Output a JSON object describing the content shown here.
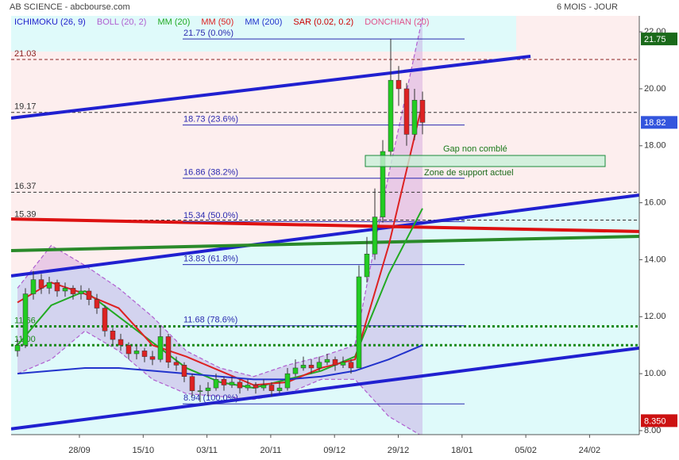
{
  "chart_data": {
    "type": "candlestick",
    "title": "AB SCIENCE - abcbourse.com",
    "period": "6 MOIS - JOUR",
    "ylim": [
      7.86,
      22.56
    ],
    "yticks": [
      {
        "value": 8,
        "label": "8.00"
      },
      {
        "value": 10,
        "label": "10.00"
      },
      {
        "value": 12,
        "label": "12.00"
      },
      {
        "value": 14,
        "label": "14.00"
      },
      {
        "value": 16,
        "label": "16.00"
      },
      {
        "value": 18,
        "label": "18.00"
      },
      {
        "value": 20,
        "label": "20.00"
      },
      {
        "value": 22,
        "label": "22.00"
      }
    ],
    "xtick_labels": [
      "28/09",
      "15/10",
      "03/11",
      "20/11",
      "09/12",
      "29/12",
      "18/01",
      "05/02",
      "24/02"
    ],
    "up_color": "#22cc22",
    "down_color": "#dd2222",
    "candles": [
      [
        10.8,
        11.2,
        10.6,
        11.0
      ],
      [
        11.0,
        13.0,
        10.9,
        12.8
      ],
      [
        12.8,
        13.6,
        12.6,
        13.3
      ],
      [
        13.3,
        13.5,
        12.8,
        13.0
      ],
      [
        13.0,
        13.4,
        12.8,
        13.2
      ],
      [
        13.2,
        13.3,
        12.7,
        12.9
      ],
      [
        12.9,
        13.2,
        12.7,
        13.0
      ],
      [
        13.0,
        13.1,
        12.6,
        12.8
      ],
      [
        12.8,
        13.1,
        12.6,
        12.9
      ],
      [
        12.9,
        13.0,
        12.4,
        12.6
      ],
      [
        12.6,
        12.8,
        12.1,
        12.3
      ],
      [
        12.3,
        12.4,
        11.3,
        11.5
      ],
      [
        11.5,
        11.6,
        11.0,
        11.2
      ],
      [
        11.2,
        11.4,
        10.8,
        11.0
      ],
      [
        11.0,
        11.1,
        10.5,
        10.7
      ],
      [
        10.7,
        11.0,
        10.5,
        10.8
      ],
      [
        10.8,
        10.9,
        10.4,
        10.6
      ],
      [
        10.6,
        10.8,
        10.3,
        10.5
      ],
      [
        10.5,
        11.7,
        10.4,
        11.3
      ],
      [
        11.3,
        11.4,
        10.2,
        10.4
      ],
      [
        10.4,
        10.6,
        10.1,
        10.3
      ],
      [
        10.3,
        10.4,
        9.7,
        9.9
      ],
      [
        9.9,
        10.0,
        9.2,
        9.4
      ],
      [
        9.4,
        9.6,
        9.0,
        9.4
      ],
      [
        9.4,
        9.7,
        9.2,
        9.5
      ],
      [
        9.5,
        10.0,
        9.4,
        9.8
      ],
      [
        9.8,
        9.9,
        9.4,
        9.6
      ],
      [
        9.6,
        9.9,
        9.5,
        9.7
      ],
      [
        9.7,
        9.8,
        9.3,
        9.5
      ],
      [
        9.5,
        9.8,
        9.4,
        9.6
      ],
      [
        9.6,
        9.7,
        9.3,
        9.5
      ],
      [
        9.5,
        9.8,
        9.4,
        9.6
      ],
      [
        9.6,
        9.7,
        9.2,
        9.4
      ],
      [
        9.4,
        9.7,
        9.3,
        9.5
      ],
      [
        9.5,
        10.2,
        9.4,
        10.0
      ],
      [
        10.0,
        10.5,
        9.9,
        10.2
      ],
      [
        10.2,
        10.6,
        10.1,
        10.3
      ],
      [
        10.3,
        10.5,
        10.0,
        10.2
      ],
      [
        10.2,
        10.6,
        10.1,
        10.4
      ],
      [
        10.4,
        10.7,
        10.3,
        10.5
      ],
      [
        10.5,
        10.6,
        10.1,
        10.3
      ],
      [
        10.3,
        10.6,
        10.2,
        10.4
      ],
      [
        10.4,
        10.5,
        10.0,
        10.2
      ],
      [
        10.2,
        13.8,
        10.2,
        13.4
      ],
      [
        13.4,
        14.8,
        13.2,
        14.2
      ],
      [
        14.2,
        16.5,
        14.0,
        15.5
      ],
      [
        15.5,
        18.2,
        15.3,
        17.8
      ],
      [
        17.8,
        21.75,
        17.6,
        20.3
      ],
      [
        20.3,
        20.8,
        19.4,
        20.0
      ],
      [
        20.0,
        20.2,
        18.0,
        18.4
      ],
      [
        18.4,
        20.0,
        18.2,
        19.6
      ],
      [
        19.6,
        19.9,
        18.4,
        18.82
      ]
    ],
    "legend": [
      {
        "name": "ICHIMOKU (26, 9)",
        "color": "#2222cc"
      },
      {
        "name": "BOLL (20, 2)",
        "color": "#b05fd0",
        "upper": [
          13.0,
          14.5,
          13.8,
          13.0,
          12.0,
          10.8,
          10.2,
          9.9,
          10.3,
          10.6,
          11.0,
          17.0,
          22.5
        ],
        "lower": [
          10.0,
          10.5,
          11.5,
          10.8,
          9.8,
          9.3,
          9.2,
          9.1,
          9.3,
          9.8,
          9.8,
          8.5,
          7.8
        ]
      },
      {
        "name": "MM (20)",
        "color": "#22aa22",
        "values": [
          11.0,
          12.4,
          12.9,
          12.0,
          11.1,
          10.2,
          9.7,
          9.5,
          9.8,
          10.1,
          10.6,
          13.5,
          15.8
        ]
      },
      {
        "name": "MM (50)",
        "color": "#dd2222",
        "values": [
          12.5,
          13.2,
          12.8,
          12.3,
          11.0,
          10.6,
          10.1,
          9.6,
          9.7,
          10.2,
          10.5,
          14.5,
          19.5
        ]
      },
      {
        "name": "MM (200)",
        "color": "#2233cc",
        "values": [
          10.0,
          10.1,
          10.2,
          10.2,
          10.1,
          10.0,
          9.9,
          9.8,
          9.8,
          9.9,
          10.1,
          10.5,
          11.0
        ]
      },
      {
        "name": "SAR (0.02, 0.2)",
        "color": "#cc0000"
      },
      {
        "name": "DONCHIAN (20)",
        "color": "#e0508a"
      }
    ],
    "trendlines": [
      {
        "color": "#2020d0",
        "from": 18.97,
        "to": 21.14
      },
      {
        "color": "#2020d0",
        "from": 13.43,
        "to": 16.27
      },
      {
        "color": "#2020d0",
        "from": 8.06,
        "to": 10.9
      },
      {
        "color": "#dd1111",
        "from": 15.43,
        "to": 14.99
      },
      {
        "color": "#2a8a2a",
        "from": 14.32,
        "to": 14.82
      }
    ],
    "levels": [
      {
        "value": 21.03,
        "label": "21.03",
        "color": "#8a2020"
      },
      {
        "value": 19.17,
        "label": "19.17",
        "color": "#333333"
      },
      {
        "value": 16.37,
        "label": "16.37",
        "color": "#333333"
      },
      {
        "value": 15.39,
        "label": "15.39",
        "color": "#333333"
      },
      {
        "value": 11.66,
        "label": "11.66",
        "color": "#1a8a1a"
      },
      {
        "value": 11.0,
        "label": "11.00",
        "color": "#1a8a1a"
      }
    ],
    "fibonacci": [
      {
        "value": 21.75,
        "label": "21.75 (0.0%)"
      },
      {
        "value": 18.73,
        "label": "18.73 (23.6%)"
      },
      {
        "value": 16.86,
        "label": "16.86 (38.2%)"
      },
      {
        "value": 15.34,
        "label": "15.34 (50.0%)"
      },
      {
        "value": 13.83,
        "label": "13.83 (61.8%)"
      },
      {
        "value": 11.68,
        "label": "11.68 (78.6%)"
      },
      {
        "value": 8.94,
        "label": "8.94 (100.0%)"
      }
    ],
    "gap": {
      "top": 17.66,
      "bottom": 17.27,
      "label": "Gap non comblé"
    },
    "support_label": "Zone de support actuel",
    "price_tags": [
      {
        "value": 21.75,
        "label": "21.75",
        "color": "#1a6a1a"
      },
      {
        "value": 18.82,
        "label": "18.82",
        "color": "#3355dd"
      },
      {
        "value": 8.35,
        "label": "8.350",
        "color": "#cc1111"
      }
    ]
  }
}
